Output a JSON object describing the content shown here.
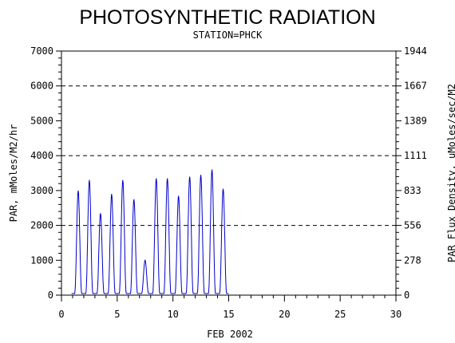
{
  "chart_data": {
    "type": "line",
    "title": "PHOTOSYNTHETIC RADIATION",
    "subtitle": "STATION=PHCK",
    "xlabel": "FEB 2002",
    "ylabel_left": "PAR, mMoles/M2/hr",
    "ylabel_right": "PAR Flux Density, uMoles/sec/M2",
    "xlim": [
      0,
      30
    ],
    "ylim": [
      0,
      7000
    ],
    "x_ticks": [
      "0",
      "5",
      "10",
      "15",
      "20",
      "25",
      "30"
    ],
    "y_ticks_left": [
      "0",
      "1000",
      "2000",
      "3000",
      "4000",
      "5000",
      "6000",
      "7000"
    ],
    "y_ticks_right": [
      "0",
      "278",
      "556",
      "833",
      "1111",
      "1389",
      "1667",
      "1944"
    ],
    "grid": "dashed horizontal at 2000, 4000, 6000",
    "series_color": "#0000cc",
    "daily_peaks": [
      {
        "day": 1,
        "peak": 3000
      },
      {
        "day": 2,
        "peak": 3300
      },
      {
        "day": 3,
        "peak": 2350
      },
      {
        "day": 4,
        "peak": 2900
      },
      {
        "day": 5,
        "peak": 3300
      },
      {
        "day": 6,
        "peak": 2750
      },
      {
        "day": 7,
        "peak": 1000
      },
      {
        "day": 8,
        "peak": 3350
      },
      {
        "day": 9,
        "peak": 3350
      },
      {
        "day": 10,
        "peak": 2850
      },
      {
        "day": 11,
        "peak": 3400
      },
      {
        "day": 12,
        "peak": 3450
      },
      {
        "day": 13,
        "peak": 3600
      },
      {
        "day": 14,
        "peak": 3050
      }
    ]
  }
}
